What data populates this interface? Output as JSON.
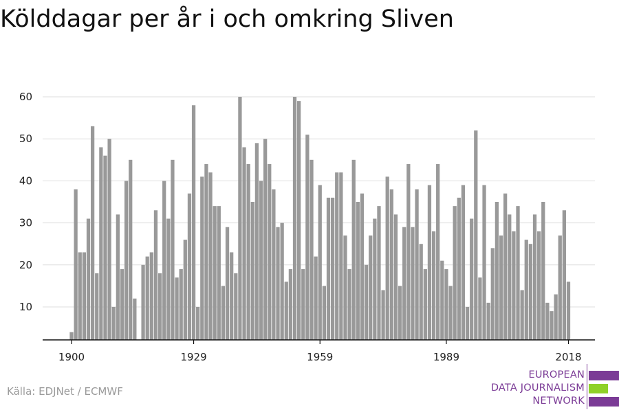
{
  "title": "Kölddagar per år i och omkring Sliven",
  "source": "Källa: EDJNet / ECMWF",
  "logo": {
    "lines": [
      "EUROPEAN",
      "DATA JOURNALISM",
      "NETWORK"
    ],
    "colors": {
      "purple": "#7b3b96",
      "green": "#8fd128"
    }
  },
  "colors": {
    "bar": "#999999",
    "grid": "#dddddd",
    "axis": "#111111",
    "text": "#222222"
  },
  "chart_data": {
    "type": "bar",
    "title": "Kölddagar per år i och omkring Sliven",
    "xlabel": "",
    "ylabel": "",
    "x_ticks": [
      1900,
      1929,
      1959,
      1989,
      2018
    ],
    "y_ticks": [
      10,
      20,
      30,
      40,
      50,
      60
    ],
    "ylim": [
      2,
      60
    ],
    "xlim": [
      1899,
      2020
    ],
    "grid": true,
    "legend": "none",
    "years": [
      1900,
      1901,
      1902,
      1903,
      1904,
      1905,
      1906,
      1907,
      1908,
      1909,
      1910,
      1911,
      1912,
      1913,
      1914,
      1915,
      1916,
      1917,
      1918,
      1919,
      1920,
      1921,
      1922,
      1923,
      1924,
      1925,
      1926,
      1927,
      1928,
      1929,
      1930,
      1931,
      1932,
      1933,
      1934,
      1935,
      1936,
      1937,
      1938,
      1939,
      1940,
      1941,
      1942,
      1943,
      1944,
      1945,
      1946,
      1947,
      1948,
      1949,
      1950,
      1951,
      1952,
      1953,
      1954,
      1955,
      1956,
      1957,
      1958,
      1959,
      1960,
      1961,
      1962,
      1963,
      1964,
      1965,
      1966,
      1967,
      1968,
      1969,
      1970,
      1971,
      1972,
      1973,
      1974,
      1975,
      1976,
      1977,
      1978,
      1979,
      1980,
      1981,
      1982,
      1983,
      1984,
      1985,
      1986,
      1987,
      1988,
      1989,
      1990,
      1991,
      1992,
      1993,
      1994,
      1995,
      1996,
      1997,
      1998,
      1999,
      2000,
      2001,
      2002,
      2003,
      2004,
      2005,
      2006,
      2007,
      2008,
      2009,
      2010,
      2011,
      2012,
      2013,
      2014,
      2015,
      2016,
      2017,
      2018
    ],
    "values": [
      4,
      38,
      23,
      23,
      31,
      53,
      18,
      48,
      46,
      50,
      10,
      32,
      19,
      40,
      45,
      12,
      0,
      20,
      22,
      23,
      33,
      18,
      40,
      31,
      45,
      17,
      19,
      26,
      37,
      58,
      10,
      41,
      44,
      42,
      34,
      34,
      15,
      29,
      23,
      18,
      60,
      48,
      44,
      35,
      49,
      40,
      50,
      44,
      38,
      29,
      30,
      16,
      19,
      60,
      59,
      19,
      51,
      45,
      22,
      39,
      15,
      36,
      36,
      42,
      42,
      27,
      19,
      45,
      35,
      37,
      20,
      27,
      31,
      34,
      14,
      41,
      38,
      32,
      15,
      29,
      44,
      29,
      38,
      25,
      19,
      39,
      28,
      44,
      21,
      19,
      15,
      34,
      36,
      39,
      10,
      31,
      52,
      17,
      39,
      11,
      24,
      35,
      27,
      37,
      32,
      28,
      34,
      14,
      26,
      25,
      32,
      28,
      35,
      11,
      9,
      13,
      27,
      33,
      16
    ]
  }
}
